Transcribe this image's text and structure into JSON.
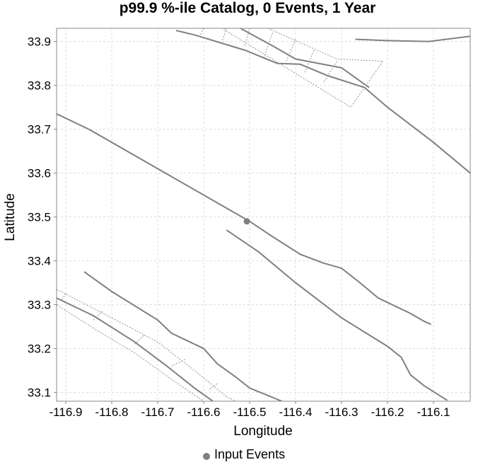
{
  "chart_data": {
    "type": "scatter",
    "title": "p99.9 %-ile Catalog, 0 Events, 1 Year",
    "xlabel": "Longitude",
    "ylabel": "Latitude",
    "xlim": [
      -116.92,
      -116.02
    ],
    "ylim": [
      33.08,
      33.93
    ],
    "x_ticks": [
      -116.9,
      -116.8,
      -116.7,
      -116.6,
      -116.5,
      -116.4,
      -116.3,
      -116.2,
      -116.1
    ],
    "x_tick_labels": [
      "-116.9",
      "-116.8",
      "-116.7",
      "-116.6",
      "-116.5",
      "-116.4",
      "-116.3",
      "-116.2",
      "-116.1"
    ],
    "y_ticks": [
      33.1,
      33.2,
      33.3,
      33.4,
      33.5,
      33.6,
      33.7,
      33.8,
      33.9
    ],
    "y_tick_labels": [
      "33.1",
      "33.2",
      "33.3",
      "33.4",
      "33.5",
      "33.6",
      "33.7",
      "33.8",
      "33.9"
    ],
    "grid": true,
    "legend": {
      "position": "bottom",
      "entries": [
        "Input Events"
      ]
    },
    "series": [
      {
        "name": "Input Events",
        "kind": "points",
        "color": "#808080",
        "points": [
          [
            -116.506,
            33.49
          ]
        ]
      }
    ],
    "fault_traces": {
      "color": "#808080",
      "traces": [
        [
          [
            -116.92,
            33.735
          ],
          [
            -116.85,
            33.7
          ],
          [
            -116.7,
            33.61
          ],
          [
            -116.55,
            33.52
          ],
          [
            -116.5,
            33.49
          ],
          [
            -116.45,
            33.455
          ],
          [
            -116.39,
            33.415
          ],
          [
            -116.34,
            33.395
          ],
          [
            -116.3,
            33.383
          ],
          [
            -116.26,
            33.35
          ],
          [
            -116.22,
            33.315
          ],
          [
            -116.18,
            33.295
          ],
          [
            -116.15,
            33.28
          ],
          [
            -116.12,
            33.262
          ],
          [
            -116.105,
            33.255
          ]
        ],
        [
          [
            -116.55,
            33.47
          ],
          [
            -116.48,
            33.42
          ],
          [
            -116.4,
            33.35
          ],
          [
            -116.3,
            33.27
          ],
          [
            -116.2,
            33.205
          ],
          [
            -116.17,
            33.18
          ],
          [
            -116.15,
            33.14
          ],
          [
            -116.12,
            33.115
          ],
          [
            -116.07,
            33.082
          ]
        ],
        [
          [
            -116.86,
            33.375
          ],
          [
            -116.8,
            33.33
          ],
          [
            -116.7,
            33.265
          ],
          [
            -116.67,
            33.235
          ],
          [
            -116.6,
            33.2
          ],
          [
            -116.57,
            33.165
          ],
          [
            -116.53,
            33.135
          ],
          [
            -116.5,
            33.11
          ],
          [
            -116.43,
            33.08
          ]
        ],
        [
          [
            -116.92,
            33.315
          ],
          [
            -116.84,
            33.275
          ],
          [
            -116.75,
            33.215
          ],
          [
            -116.68,
            33.16
          ],
          [
            -116.62,
            33.11
          ],
          [
            -116.58,
            33.08
          ]
        ],
        [
          [
            -116.66,
            33.925
          ],
          [
            -116.62,
            33.915
          ],
          [
            -116.51,
            33.88
          ],
          [
            -116.44,
            33.85
          ],
          [
            -116.39,
            33.848
          ],
          [
            -116.33,
            33.822
          ],
          [
            -116.25,
            33.795
          ],
          [
            -116.2,
            33.75
          ],
          [
            -116.1,
            33.67
          ],
          [
            -116.02,
            33.6
          ]
        ],
        [
          [
            -116.52,
            33.93
          ],
          [
            -116.45,
            33.89
          ],
          [
            -116.4,
            33.86
          ],
          [
            -116.3,
            33.84
          ],
          [
            -116.24,
            33.795
          ]
        ],
        [
          [
            -116.27,
            33.905
          ],
          [
            -116.2,
            33.902
          ],
          [
            -116.11,
            33.9
          ],
          [
            -116.02,
            33.912
          ]
        ]
      ]
    },
    "rupture_outlines": {
      "color": "#909090",
      "polygons": [
        [
          [
            -116.62,
            33.93
          ],
          [
            -116.46,
            33.93
          ],
          [
            -116.31,
            33.86
          ],
          [
            -116.21,
            33.855
          ],
          [
            -116.28,
            33.75
          ],
          [
            -116.42,
            33.84
          ],
          [
            -116.56,
            33.93
          ]
        ],
        [
          [
            -116.92,
            33.335
          ],
          [
            -116.8,
            33.27
          ],
          [
            -116.7,
            33.215
          ],
          [
            -116.62,
            33.15
          ],
          [
            -116.55,
            33.09
          ],
          [
            -116.53,
            33.08
          ],
          [
            -116.6,
            33.08
          ],
          [
            -116.67,
            33.13
          ],
          [
            -116.75,
            33.19
          ],
          [
            -116.83,
            33.24
          ],
          [
            -116.92,
            33.3
          ]
        ]
      ],
      "dividers": [
        [
          [
            -116.6,
            33.93
          ],
          [
            -116.61,
            33.91
          ]
        ],
        [
          [
            -116.55,
            33.93
          ],
          [
            -116.56,
            33.9
          ]
        ],
        [
          [
            -116.5,
            33.93
          ],
          [
            -116.51,
            33.89
          ]
        ],
        [
          [
            -116.45,
            33.92
          ],
          [
            -116.47,
            33.86
          ]
        ],
        [
          [
            -116.4,
            33.905
          ],
          [
            -116.42,
            33.855
          ]
        ],
        [
          [
            -116.36,
            33.88
          ],
          [
            -116.38,
            33.83
          ]
        ],
        [
          [
            -116.31,
            33.855
          ],
          [
            -116.34,
            33.805
          ]
        ],
        [
          [
            -116.9,
            33.325
          ],
          [
            -116.91,
            33.31
          ]
        ],
        [
          [
            -116.82,
            33.285
          ],
          [
            -116.84,
            33.265
          ]
        ],
        [
          [
            -116.73,
            33.23
          ],
          [
            -116.75,
            33.21
          ]
        ],
        [
          [
            -116.64,
            33.175
          ],
          [
            -116.67,
            33.16
          ]
        ],
        [
          [
            -116.57,
            33.12
          ],
          [
            -116.59,
            33.105
          ]
        ]
      ]
    }
  }
}
